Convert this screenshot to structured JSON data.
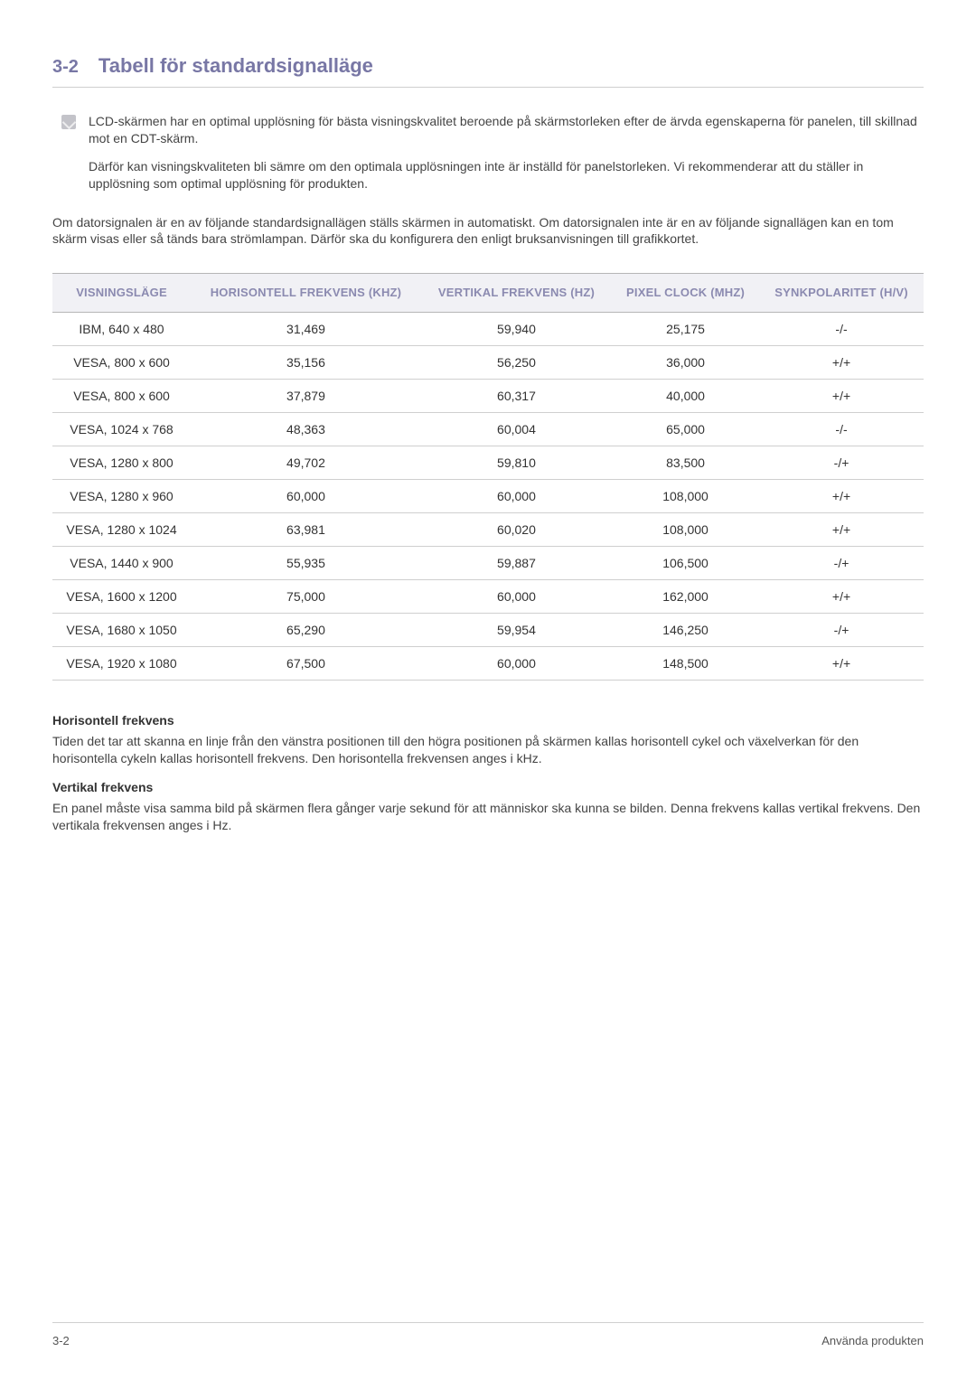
{
  "heading": {
    "number": "3-2",
    "title": "Tabell för standardsignalläge"
  },
  "note": {
    "p1": "LCD-skärmen har en optimal upplösning för bästa visningskvalitet beroende på skärmstorleken efter de ärvda egenskaperna för panelen, till skillnad mot en CDT-skärm.",
    "p2": "Därför kan visningskvaliteten bli sämre om den optimala upplösningen inte är inställd för panelstorleken. Vi rekommenderar att du ställer in upplösning som optimal upplösning för produkten."
  },
  "intro": "Om datorsignalen är en av följande standardsignallägen ställs skärmen in automatiskt. Om datorsignalen inte är en av följande signallägen kan en tom skärm visas eller så tänds bara strömlampan. Därför ska du konfigurera den enligt bruksanvisningen till grafikkortet.",
  "table": {
    "headers": {
      "c1": "VISNINGSLÄGE",
      "c2": "HORISONTELL FREKVENS (KHZ)",
      "c3": "VERTIKAL FREKVENS (HZ)",
      "c4": "PIXEL CLOCK (MHZ)",
      "c5": "SYNKPOLARITET (H/V)"
    },
    "rows": [
      {
        "c1": "IBM, 640 x 480",
        "c2": "31,469",
        "c3": "59,940",
        "c4": "25,175",
        "c5": "-/-"
      },
      {
        "c1": "VESA, 800 x 600",
        "c2": "35,156",
        "c3": "56,250",
        "c4": "36,000",
        "c5": "+/+"
      },
      {
        "c1": "VESA, 800 x 600",
        "c2": "37,879",
        "c3": "60,317",
        "c4": "40,000",
        "c5": "+/+"
      },
      {
        "c1": "VESA, 1024 x 768",
        "c2": "48,363",
        "c3": "60,004",
        "c4": "65,000",
        "c5": "-/-"
      },
      {
        "c1": "VESA, 1280 x 800",
        "c2": "49,702",
        "c3": "59,810",
        "c4": "83,500",
        "c5": "-/+"
      },
      {
        "c1": "VESA, 1280 x 960",
        "c2": "60,000",
        "c3": "60,000",
        "c4": "108,000",
        "c5": "+/+"
      },
      {
        "c1": "VESA, 1280 x 1024",
        "c2": "63,981",
        "c3": "60,020",
        "c4": "108,000",
        "c5": "+/+"
      },
      {
        "c1": "VESA, 1440 x 900",
        "c2": "55,935",
        "c3": "59,887",
        "c4": "106,500",
        "c5": "-/+"
      },
      {
        "c1": "VESA, 1600 x 1200",
        "c2": "75,000",
        "c3": "60,000",
        "c4": "162,000",
        "c5": "+/+"
      },
      {
        "c1": "VESA, 1680 x 1050",
        "c2": "65,290",
        "c3": "59,954",
        "c4": "146,250",
        "c5": "-/+"
      },
      {
        "c1": "VESA, 1920 x 1080",
        "c2": "67,500",
        "c3": "60,000",
        "c4": "148,500",
        "c5": "+/+"
      }
    ]
  },
  "defs": {
    "h1": "Horisontell frekvens",
    "p1": "Tiden det tar att skanna en linje från den vänstra positionen till den högra positionen på skärmen kallas horisontell cykel och växelverkan för den horisontella cykeln kallas horisontell frekvens. Den horisontella frekvensen anges i kHz.",
    "h2": "Vertikal frekvens",
    "p2": "En panel måste visa samma bild på skärmen flera gånger varje sekund för att människor ska kunna se bilden. Denna frekvens kallas vertikal frekvens. Den vertikala frekvensen anges i Hz."
  },
  "footer": {
    "left": "3-2",
    "right": "Använda produkten"
  }
}
